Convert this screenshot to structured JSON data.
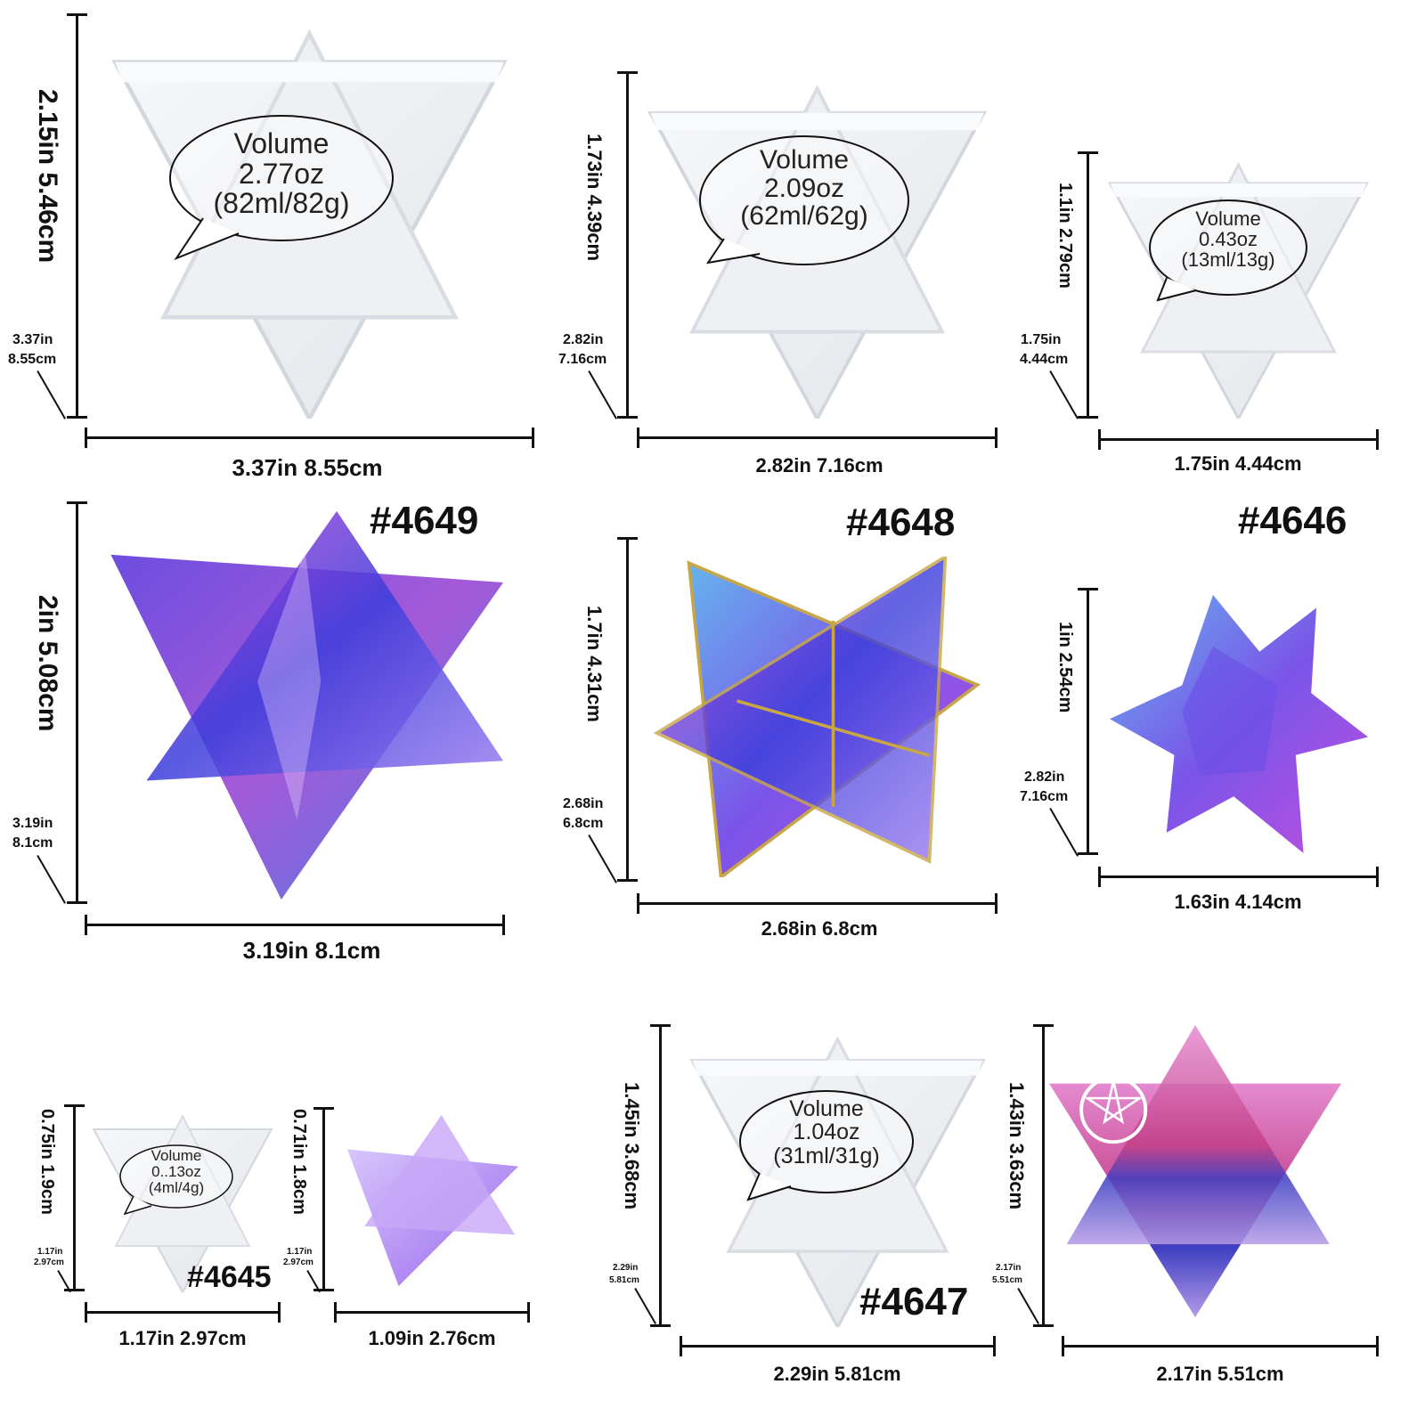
{
  "colors": {
    "mold": "#eceef2",
    "mold_edge": "#d2d6dd",
    "line": "#111111",
    "purple": "#7b3fe4",
    "blue": "#3a4bd8",
    "pink": "#e04b8a",
    "violet": "#b184f0"
  },
  "products": [
    {
      "code": "#4649",
      "volume_title": "Volume",
      "volume_oz": "2.77oz",
      "volume_ml": "(82ml/82g)",
      "mold_width": "3.37in  8.55cm",
      "mold_height": "2.15in  5.46cm",
      "mold_depth_in": "3.37in",
      "mold_depth_cm": "8.55cm",
      "resin_width": "3.19in  8.1cm",
      "resin_height": "2in  5.08cm",
      "resin_depth_in": "3.19in",
      "resin_depth_cm": "8.1cm"
    },
    {
      "code": "#4648",
      "volume_title": "Volume",
      "volume_oz": "2.09oz",
      "volume_ml": "(62ml/62g)",
      "mold_width": "2.82in  7.16cm",
      "mold_height": "1.73in  4.39cm",
      "mold_depth_in": "2.82in",
      "mold_depth_cm": "7.16cm",
      "resin_width": "2.68in  6.8cm",
      "resin_height": "1.7in  4.31cm",
      "resin_depth_in": "2.68in",
      "resin_depth_cm": "6.8cm"
    },
    {
      "code": "#4646",
      "volume_title": "Volume",
      "volume_oz": "0.43oz",
      "volume_ml": "(13ml/13g)",
      "mold_width": "1.75in  4.44cm",
      "mold_height": "1.1in  2.79cm",
      "mold_depth_in": "1.75in",
      "mold_depth_cm": "4.44cm",
      "resin_width": "1.63in  4.14cm",
      "resin_height": "1in  2.54cm",
      "resin_depth_in": "2.82in",
      "resin_depth_cm": "7.16cm"
    },
    {
      "code": "#4645",
      "volume_title": "Volume",
      "volume_oz": "0..13oz",
      "volume_ml": "(4ml/4g)",
      "mold_width": "1.17in  2.97cm",
      "mold_height": "0.75in  1.9cm",
      "mold_depth_in": "1.17in",
      "mold_depth_cm": "2.97cm",
      "resin_width": "1.09in  2.76cm",
      "resin_height": "0.71in  1.8cm",
      "resin_depth_in": "1.17in",
      "resin_depth_cm": "2.97cm"
    },
    {
      "code": "#4647",
      "volume_title": "Volume",
      "volume_oz": "1.04oz",
      "volume_ml": "(31ml/31g)",
      "mold_width": "2.29in  5.81cm",
      "mold_height": "1.45in  3.68cm",
      "mold_depth_in": "2.29in",
      "mold_depth_cm": "5.81cm",
      "resin_width": "2.17in  5.51cm",
      "resin_height": "1.43in  3.63cm",
      "resin_depth_in": "2.17in",
      "resin_depth_cm": "5.51cm"
    }
  ]
}
